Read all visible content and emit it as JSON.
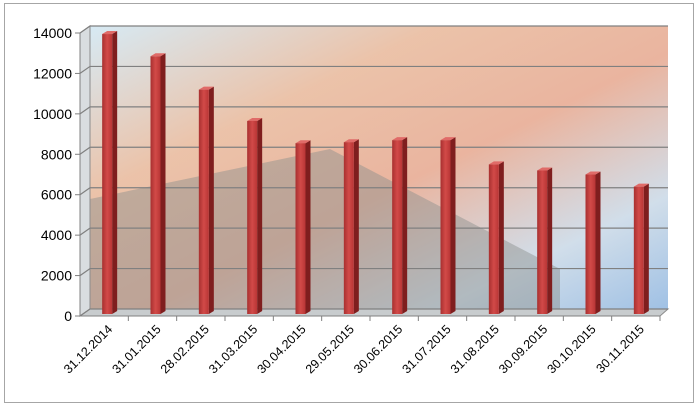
{
  "chart_data": {
    "type": "bar",
    "title": "",
    "xlabel": "",
    "ylabel": "",
    "ylim": [
      0,
      14000
    ],
    "yticks": [
      0,
      2000,
      4000,
      6000,
      8000,
      10000,
      12000,
      14000
    ],
    "grid": true,
    "legend": "none",
    "categories": [
      "31.12.2014",
      "31.01.2015",
      "28.02.2015",
      "31.03.2015",
      "30.04.2015",
      "29.05.2015",
      "30.06.2015",
      "31.07.2015",
      "31.08.2015",
      "30.09.2015",
      "30.10.2015",
      "30.11.2015"
    ],
    "values": [
      13800,
      12700,
      11050,
      9500,
      8400,
      8450,
      8550,
      8550,
      7350,
      7050,
      6850,
      6250
    ],
    "bar_color": "#c0393a"
  }
}
